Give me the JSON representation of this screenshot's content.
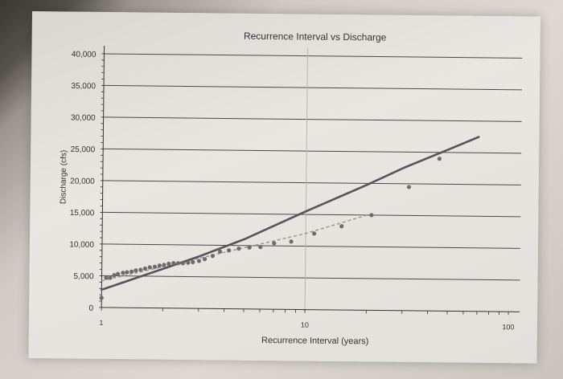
{
  "chart_data": {
    "type": "scatter",
    "title": "Recurrence Interval vs Discharge",
    "xlabel": "Recurrence Interval (years)",
    "ylabel": "Discharge (cfs)",
    "x_scale": "log",
    "xlim": [
      1,
      100
    ],
    "ylim": [
      0,
      40000
    ],
    "x_ticks": [
      "1",
      "10",
      "100"
    ],
    "y_ticks": [
      "0",
      "5,000",
      "10,000",
      "15,000",
      "20,000",
      "25,000",
      "30,000",
      "35,000",
      "40,000"
    ],
    "grid": true,
    "colors": {
      "points": "#6e6c68",
      "trendline": "#55555a",
      "trendline_dashed": "#9a9894"
    },
    "points": {
      "x": [
        1.0,
        1.05,
        1.1,
        1.15,
        1.2,
        1.27,
        1.33,
        1.4,
        1.47,
        1.55,
        1.63,
        1.72,
        1.82,
        1.92,
        2.02,
        2.13,
        2.25,
        2.37,
        2.5,
        2.65,
        2.8,
        3.0,
        3.2,
        3.5,
        3.8,
        4.2,
        4.7,
        5.3,
        6.0,
        7.0,
        8.5,
        11.0,
        15.0,
        21.0,
        32.0,
        45.0
      ],
      "y": [
        1500,
        4700,
        4700,
        5100,
        5300,
        5500,
        5600,
        5700,
        5900,
        6000,
        6200,
        6400,
        6500,
        6700,
        6800,
        7000,
        7100,
        7100,
        7100,
        7200,
        7300,
        7500,
        7800,
        8300,
        9000,
        9200,
        9500,
        9700,
        9800,
        10400,
        10700,
        12000,
        13200,
        15000,
        19500,
        24000
      ]
    },
    "trendline": {
      "x": [
        1,
        2,
        3,
        5,
        10,
        20,
        30,
        50,
        70
      ],
      "y": [
        2800,
        6200,
        8200,
        11000,
        15500,
        19800,
        22500,
        25500,
        27500
      ]
    },
    "trendline_dashed": {
      "x": [
        1,
        10,
        20
      ],
      "y": [
        4200,
        12000,
        15000
      ]
    }
  }
}
